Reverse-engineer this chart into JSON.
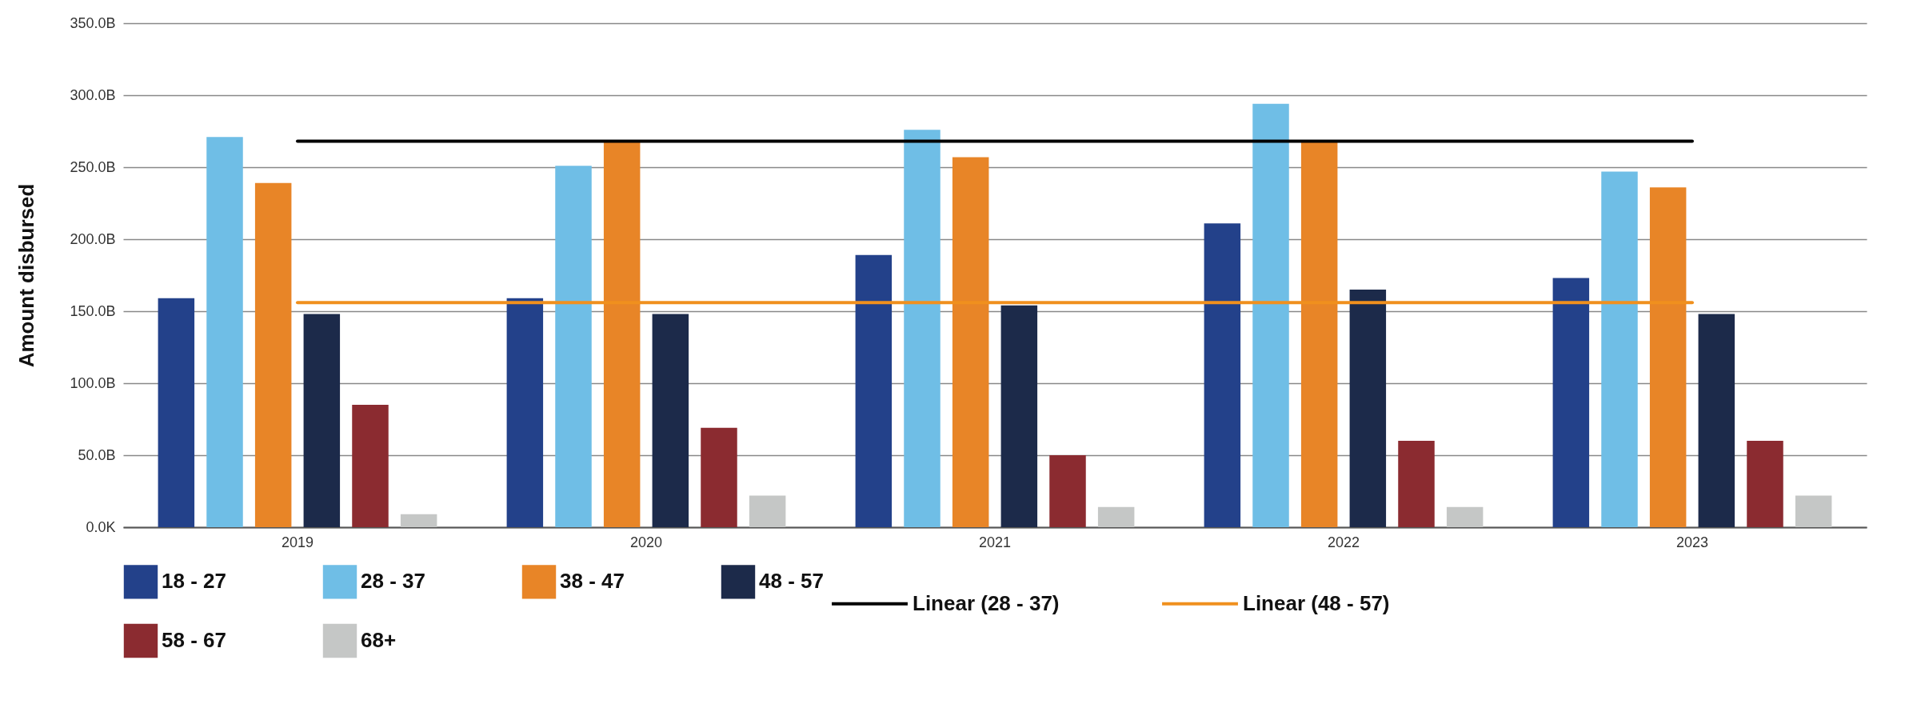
{
  "chart_data": {
    "type": "bar",
    "ylabel": "Amount disbursed",
    "categories": [
      "2019",
      "2020",
      "2021",
      "2022",
      "2023"
    ],
    "series": [
      {
        "name": "18 - 27",
        "color": "#23418a",
        "values": [
          159,
          159,
          189,
          211,
          173
        ]
      },
      {
        "name": "28 - 37",
        "color": "#6fbee6",
        "values": [
          271,
          251,
          276,
          294,
          247
        ]
      },
      {
        "name": "38 - 47",
        "color": "#e88527",
        "values": [
          239,
          268,
          257,
          268,
          236
        ]
      },
      {
        "name": "48 - 57",
        "color": "#1c2a4a",
        "values": [
          148,
          148,
          154,
          165,
          148
        ]
      },
      {
        "name": "58 - 67",
        "color": "#8b2b30",
        "values": [
          85,
          69,
          50,
          60,
          60
        ]
      },
      {
        "name": "68+",
        "color": "#c5c7c6",
        "values": [
          9,
          22,
          14,
          14,
          22
        ]
      },
      {
        "name": "Linear (28 - 37)",
        "type": "line",
        "color": "#000000",
        "values": [
          268,
          268,
          268,
          268,
          268
        ]
      },
      {
        "name": "Linear (48 - 57)",
        "type": "line",
        "color": "#f0901e",
        "values": [
          156,
          156,
          156,
          156,
          156
        ]
      }
    ],
    "ylim": [
      0,
      350
    ],
    "yticks": [
      {
        "value": 0,
        "label": "0.0K"
      },
      {
        "value": 50,
        "label": "50.0B"
      },
      {
        "value": 100,
        "label": "100.0B"
      },
      {
        "value": 150,
        "label": "150.0B"
      },
      {
        "value": 200,
        "label": "200.0B"
      },
      {
        "value": 250,
        "label": "250.0B"
      },
      {
        "value": 300,
        "label": "300.0B"
      },
      {
        "value": 350,
        "label": "350.0B"
      }
    ],
    "grid": "y",
    "legend": "bottom"
  }
}
